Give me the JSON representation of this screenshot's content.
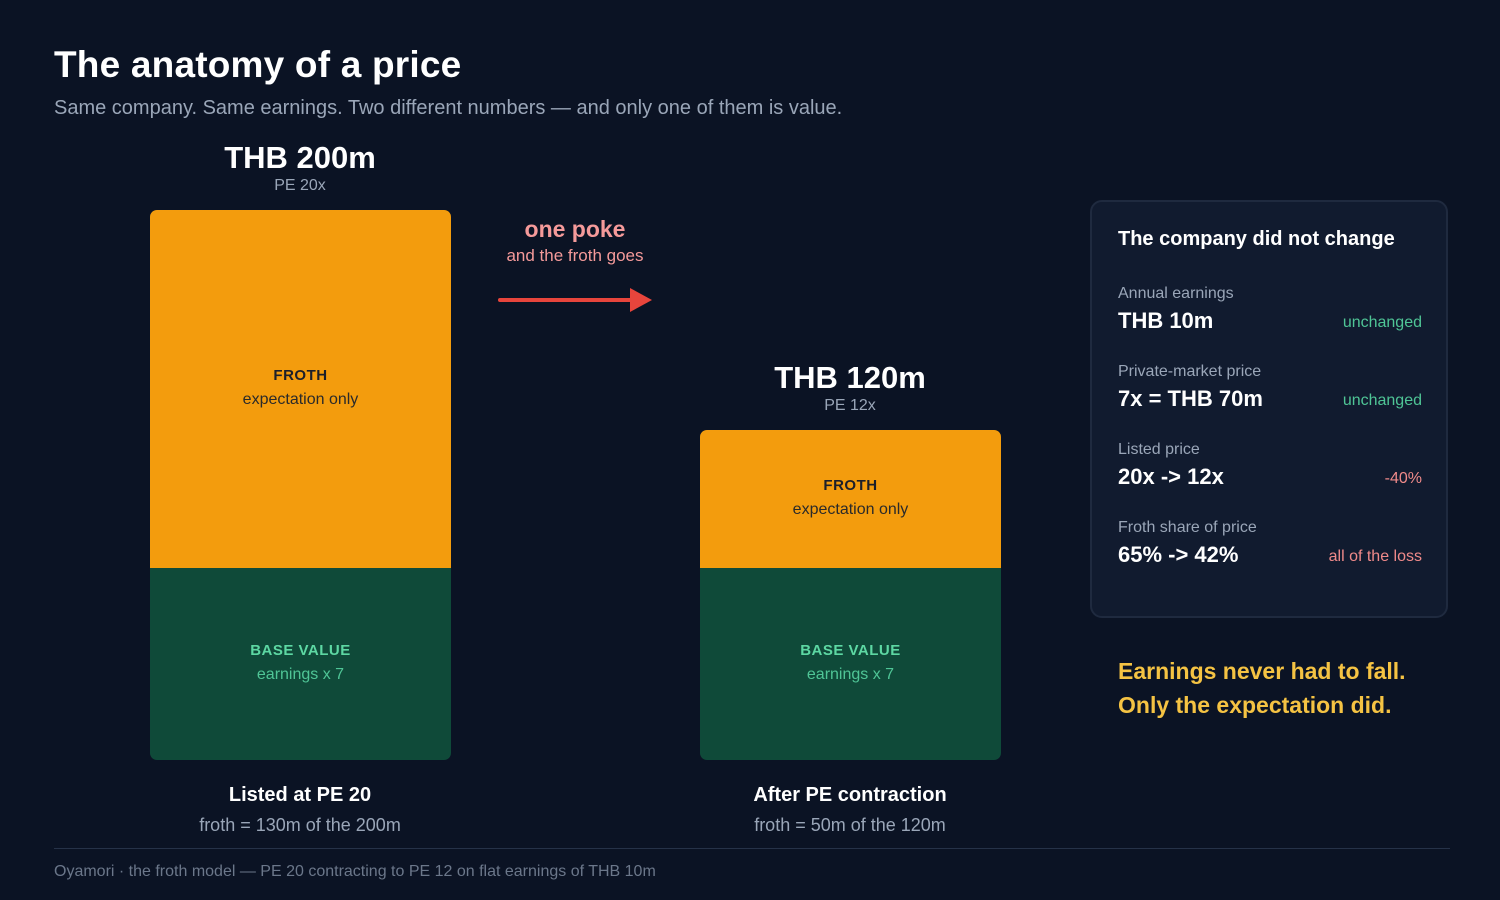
{
  "header": {
    "title": "The anatomy of a price",
    "subtitle": "Same company. Same earnings. Two different numbers — and only one of them is value."
  },
  "chart_data": {
    "type": "bar",
    "stacked": true,
    "categories": [
      "Listed at PE 20",
      "After PE contraction"
    ],
    "series": [
      {
        "name": "BASE VALUE",
        "values": [
          70,
          70
        ]
      },
      {
        "name": "FROTH",
        "values": [
          130,
          50
        ]
      }
    ],
    "ylim": [
      0,
      200
    ],
    "legend": "none",
    "grid": false
  },
  "bars": [
    {
      "price": "THB 200m",
      "pe": "PE 20x",
      "froth_title": "FROTH",
      "froth_sub": "expectation only",
      "base_title": "BASE VALUE",
      "base_sub": "earnings x 7",
      "caption": "Listed at PE 20",
      "froth_note": "froth = 130m of the 200m"
    },
    {
      "price": "THB 120m",
      "pe": "PE 12x",
      "froth_title": "FROTH",
      "froth_sub": "expectation only",
      "base_title": "BASE VALUE",
      "base_sub": "earnings x 7",
      "caption": "After PE contraction",
      "froth_note": "froth = 50m of the 120m"
    }
  ],
  "transition": {
    "line1": "one poke",
    "line2": "and the froth goes",
    "arrow_icon": "arrow-right-icon"
  },
  "card": {
    "title": "The company did not change",
    "rows": [
      {
        "label": "Annual earnings",
        "value": "THB 10m",
        "status": "unchanged"
      },
      {
        "label": "Private-market price",
        "value": "7x = THB 70m",
        "status": "unchanged"
      },
      {
        "label": "Listed price",
        "value": "20x -> 12x",
        "status": "-40%"
      },
      {
        "label": "Froth share of price",
        "value": "65% -> 42%",
        "status": "all of the loss"
      }
    ]
  },
  "punchline": {
    "line1": "Earnings never had to fall.",
    "line2": "Only the expectation did."
  },
  "footer": {
    "text": "Oyamori · the froth model — PE 20 contracting to PE 12 on flat earnings of THB 10m"
  },
  "colors": {
    "background": "#0b1324",
    "froth": "#f39c0d",
    "base": "#0f4a39",
    "base_text": "#5dd8a3",
    "accent_red": "#e8453c",
    "poke_text": "#f59a9a",
    "good": "#4fc596",
    "bad": "#f08a8a",
    "punch": "#f5c343"
  }
}
